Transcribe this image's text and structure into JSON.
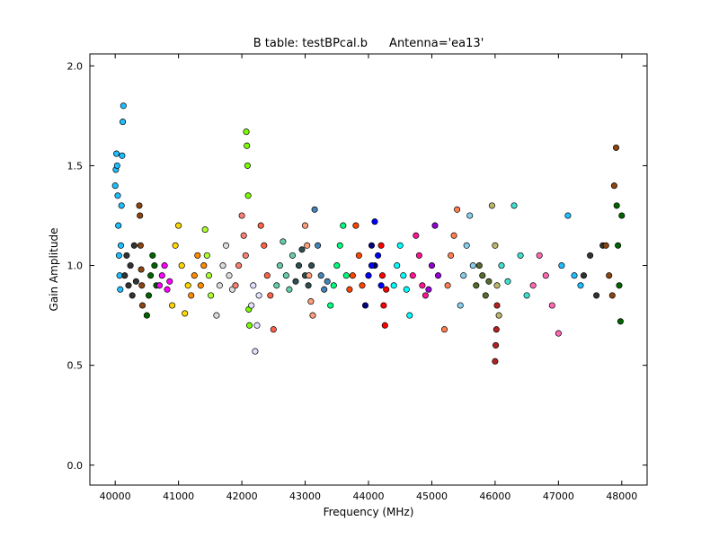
{
  "chart_data": {
    "type": "scatter",
    "title": "B table: testBPcal.b",
    "subtitle": "Antenna='ea13'",
    "xlabel": "Frequency (MHz)",
    "ylabel": "Gain Amplitude",
    "xlim": [
      39600,
      48400
    ],
    "ylim": [
      -0.1,
      2.06
    ],
    "xticks": [
      40000,
      41000,
      42000,
      43000,
      44000,
      45000,
      46000,
      47000,
      48000
    ],
    "xtick_labels": [
      "40000",
      "41000",
      "42000",
      "43000",
      "44000",
      "45000",
      "46000",
      "47000",
      "48000"
    ],
    "yticks": [
      0.0,
      0.5,
      1.0,
      1.5,
      2.0
    ],
    "ytick_labels": [
      "0.0",
      "0.5",
      "1.0",
      "1.5",
      "2.0"
    ],
    "grid": false,
    "legend": "none",
    "marker": "circle, black edge",
    "series_colors": [
      "#1fbfff",
      "#333333",
      "#8b4513",
      "#006400",
      "#ff00ff",
      "#ffd700",
      "#ff8c00",
      "#adff2f",
      "#dcdcdc",
      "#fa8072",
      "#7cfc00",
      "#e0e0ff",
      "#ff6347",
      "#66cdaa",
      "#2f4f4f",
      "#ffa07a",
      "#4682b4",
      "#00ff7f",
      "#ff4500",
      "#000080",
      "#0000ff",
      "#ff0000",
      "#00ffff",
      "#ff1493",
      "#9400d3",
      "#ff7f50",
      "#87ceeb",
      "#556b2f",
      "#bdb76b",
      "#b22222",
      "#40e0d0",
      "#ff69b4"
    ],
    "series": [
      {
        "x": [
          40000,
          40010,
          40020,
          40030,
          40040,
          40050,
          40060,
          40070,
          40080,
          40090,
          40100,
          40110,
          40120,
          40130
        ],
        "y": [
          1.4,
          1.48,
          1.56,
          1.5,
          1.35,
          1.2,
          1.05,
          0.95,
          0.88,
          1.1,
          1.3,
          1.55,
          1.72,
          1.8
        ]
      },
      {
        "x": [
          40150,
          40180,
          40210,
          40240,
          40270,
          40300,
          40330
        ],
        "y": [
          0.95,
          1.05,
          0.9,
          1.0,
          0.85,
          1.1,
          0.92
        ]
      },
      {
        "x": [
          40380,
          40390,
          40400,
          40410,
          40420,
          40430
        ],
        "y": [
          1.3,
          1.25,
          1.1,
          0.98,
          0.9,
          0.8
        ]
      },
      {
        "x": [
          40500,
          40530,
          40560,
          40590,
          40620,
          40650
        ],
        "y": [
          0.75,
          0.85,
          0.95,
          1.05,
          1.0,
          0.9
        ]
      },
      {
        "x": [
          40700,
          40740,
          40780,
          40820,
          40860
        ],
        "y": [
          0.9,
          0.95,
          1.0,
          0.88,
          0.92
        ]
      },
      {
        "x": [
          40900,
          40950,
          41000,
          41050,
          41100,
          41150
        ],
        "y": [
          0.8,
          1.1,
          1.2,
          1.0,
          0.76,
          0.9
        ]
      },
      {
        "x": [
          41200,
          41250,
          41300,
          41350,
          41400
        ],
        "y": [
          0.85,
          0.95,
          1.05,
          0.9,
          1.0
        ]
      },
      {
        "x": [
          41420,
          41450,
          41480,
          41510
        ],
        "y": [
          1.18,
          1.05,
          0.95,
          0.85
        ]
      },
      {
        "x": [
          41600,
          41650,
          41700,
          41750,
          41800,
          41850
        ],
        "y": [
          0.75,
          0.9,
          1.0,
          1.1,
          0.95,
          0.88
        ]
      },
      {
        "x": [
          41900,
          41950,
          42000,
          42030,
          42060
        ],
        "y": [
          0.9,
          1.0,
          1.25,
          1.15,
          1.05
        ]
      },
      {
        "x": [
          42070,
          42080,
          42090,
          42100,
          42110,
          42120
        ],
        "y": [
          1.67,
          1.6,
          1.5,
          1.35,
          0.78,
          0.7
        ]
      },
      {
        "x": [
          42150,
          42180,
          42210,
          42240,
          42270
        ],
        "y": [
          0.8,
          0.9,
          0.57,
          0.7,
          0.85
        ]
      },
      {
        "x": [
          42300,
          42350,
          42400,
          42450,
          42500
        ],
        "y": [
          1.2,
          1.1,
          0.95,
          0.85,
          0.68
        ]
      },
      {
        "x": [
          42550,
          42600,
          42650,
          42700,
          42750,
          42800
        ],
        "y": [
          0.9,
          1.0,
          1.12,
          0.95,
          0.88,
          1.05
        ]
      },
      {
        "x": [
          42850,
          42900,
          42950,
          43000,
          43050,
          43100
        ],
        "y": [
          0.92,
          1.0,
          1.08,
          0.95,
          0.9,
          1.0
        ]
      },
      {
        "x": [
          43000,
          43030,
          43060,
          43090,
          43120
        ],
        "y": [
          1.2,
          1.1,
          0.95,
          0.82,
          0.75
        ]
      },
      {
        "x": [
          43150,
          43200,
          43250,
          43300,
          43350
        ],
        "y": [
          1.28,
          1.1,
          0.95,
          0.88,
          0.92
        ]
      },
      {
        "x": [
          43400,
          43450,
          43500,
          43550,
          43600,
          43650
        ],
        "y": [
          0.8,
          0.9,
          1.0,
          1.1,
          1.2,
          0.95
        ]
      },
      {
        "x": [
          43700,
          43750,
          43800,
          43850,
          43900
        ],
        "y": [
          0.88,
          0.95,
          1.2,
          1.05,
          0.9
        ]
      },
      {
        "x": [
          43950,
          44000,
          44050,
          44100
        ],
        "y": [
          0.8,
          0.95,
          1.1,
          1.0
        ]
      },
      {
        "x": [
          44000,
          44050,
          44100,
          44150,
          44200
        ],
        "y": [
          0.95,
          1.0,
          1.22,
          1.05,
          0.9
        ]
      },
      {
        "x": [
          44200,
          44220,
          44240,
          44260,
          44280
        ],
        "y": [
          1.1,
          0.95,
          0.8,
          0.7,
          0.88
        ]
      },
      {
        "x": [
          44400,
          44450,
          44500,
          44550,
          44600,
          44650
        ],
        "y": [
          0.9,
          1.0,
          1.1,
          0.95,
          0.88,
          0.75
        ]
      },
      {
        "x": [
          44700,
          44750,
          44800,
          44850,
          44900
        ],
        "y": [
          0.95,
          1.15,
          1.05,
          0.9,
          0.85
        ]
      },
      {
        "x": [
          44950,
          45000,
          45050,
          45100
        ],
        "y": [
          0.88,
          1.0,
          1.2,
          0.95
        ]
      },
      {
        "x": [
          45200,
          45250,
          45300,
          45350,
          45400
        ],
        "y": [
          0.68,
          0.9,
          1.05,
          1.15,
          1.28
        ]
      },
      {
        "x": [
          45450,
          45500,
          45550,
          45600,
          45650
        ],
        "y": [
          0.8,
          0.95,
          1.1,
          1.25,
          1.0
        ]
      },
      {
        "x": [
          45700,
          45750,
          45800,
          45850,
          45900
        ],
        "y": [
          0.9,
          1.0,
          0.95,
          0.85,
          0.92
        ]
      },
      {
        "x": [
          45950,
          46000,
          46030,
          46060
        ],
        "y": [
          1.3,
          1.1,
          0.9,
          0.75
        ]
      },
      {
        "x": [
          46000,
          46010,
          46020,
          46030
        ],
        "y": [
          0.52,
          0.6,
          0.68,
          0.8
        ]
      },
      {
        "x": [
          46100,
          46200,
          46300,
          46400,
          46500
        ],
        "y": [
          1.0,
          0.92,
          1.3,
          1.05,
          0.85
        ]
      },
      {
        "x": [
          46600,
          46700,
          46800,
          46900,
          47000
        ],
        "y": [
          0.9,
          1.05,
          0.95,
          0.8,
          0.66
        ]
      },
      {
        "x": [
          47050,
          47150,
          47250,
          47350
        ],
        "y": [
          1.0,
          1.25,
          0.95,
          0.9
        ]
      },
      {
        "x": [
          47400,
          47500,
          47600,
          47700
        ],
        "y": [
          0.95,
          1.05,
          0.85,
          1.1
        ]
      },
      {
        "x": [
          47750,
          47800,
          47850,
          47880,
          47910
        ],
        "y": [
          1.1,
          0.95,
          0.85,
          1.4,
          1.59
        ]
      },
      {
        "x": [
          47920,
          47940,
          47960,
          47980,
          48000
        ],
        "y": [
          1.3,
          1.1,
          0.9,
          0.72,
          1.25
        ]
      }
    ]
  }
}
